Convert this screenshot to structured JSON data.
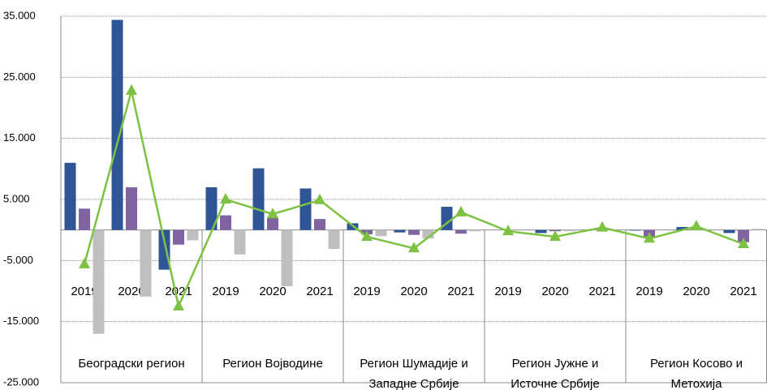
{
  "chart_data": {
    "type": "bar",
    "categories": [
      "2019",
      "2020",
      "2021",
      "2019",
      "2020",
      "2021",
      "2019",
      "2020",
      "2021",
      "2019",
      "2020",
      "2021",
      "2019",
      "2020",
      "2021"
    ],
    "regions": [
      "Београдски регион",
      "Регион Војводине",
      "Регион Шумадије и Западне Србије",
      "Регион Јужне и Источне Србије",
      "Регион Косово и Метохија"
    ],
    "series": [
      {
        "color": "#2f5597",
        "values": [
          11000,
          34400,
          -6500,
          7000,
          10100,
          6800,
          1100,
          -400,
          3800,
          0,
          -500,
          0,
          -100,
          500,
          -500
        ]
      },
      {
        "color": "#8064a2",
        "values": [
          3500,
          7000,
          -2400,
          2400,
          2000,
          1800,
          -700,
          -800,
          -600,
          0,
          -200,
          100,
          -1100,
          200,
          -2000
        ]
      },
      {
        "color": "#bfbfbf",
        "values": [
          -17000,
          -10900,
          -1700,
          -4000,
          -9200,
          -3100,
          -1000,
          -1400,
          -200,
          0,
          -200,
          0,
          0,
          0,
          200
        ]
      },
      {
        "type": "line",
        "color": "#7dc242",
        "values": [
          -5600,
          22800,
          -12500,
          5000,
          2600,
          4900,
          -1100,
          -3000,
          2900,
          -200,
          -1100,
          400,
          -1400,
          600,
          -2300
        ]
      }
    ],
    "ylim": [
      -25000,
      35000
    ],
    "yticks": [
      {
        "value": -25000,
        "label": "-25.000"
      },
      {
        "value": -15000,
        "label": "-15.000"
      },
      {
        "value": -5000,
        "label": "-5.000"
      },
      {
        "value": 5000,
        "label": "5.000"
      },
      {
        "value": 15000,
        "label": "15.000"
      },
      {
        "value": 25000,
        "label": "25.000"
      },
      {
        "value": 35000,
        "label": "35.000"
      }
    ],
    "grid": true
  }
}
